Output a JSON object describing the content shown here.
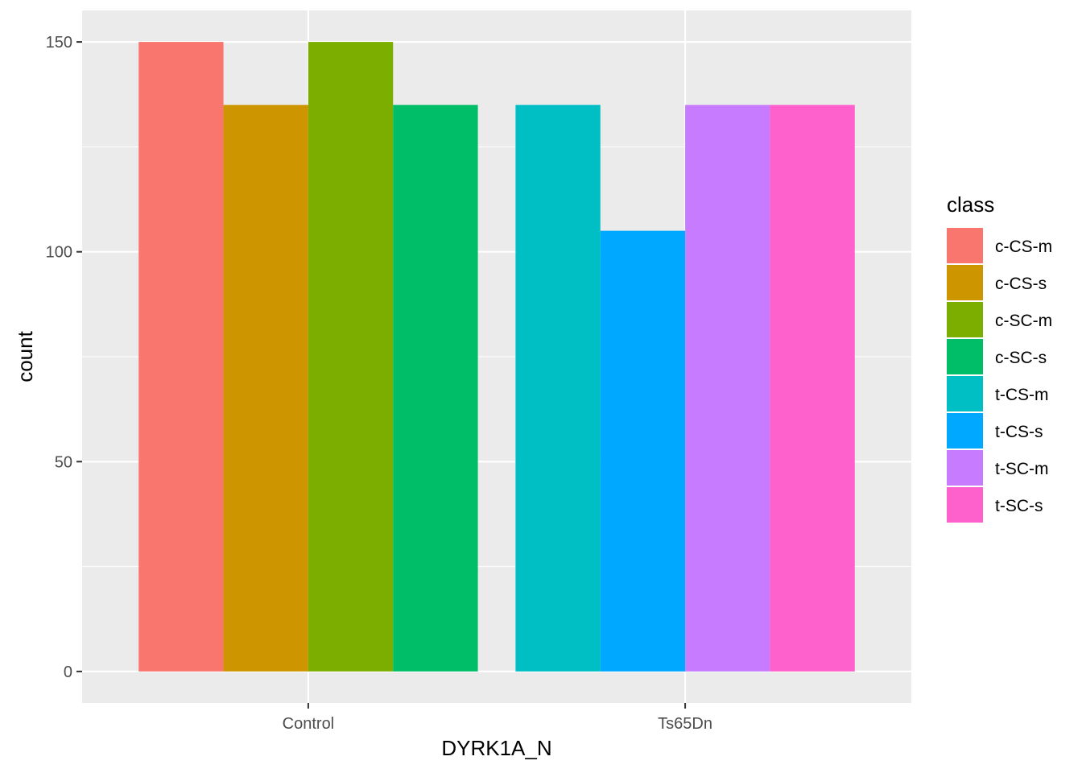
{
  "chart_data": {
    "type": "bar",
    "xlabel": "DYRK1A_N",
    "ylabel": "count",
    "categories": [
      "Control",
      "Ts65Dn"
    ],
    "ylim": [
      -7.5,
      157.5
    ],
    "y_ticks": [
      0,
      50,
      100,
      150
    ],
    "y_tick_labels": [
      "0",
      "50",
      "100",
      "150"
    ],
    "grid": true,
    "background": "#EBEBEB",
    "legend": {
      "title": "class",
      "position": "right",
      "entries": [
        "c-CS-m",
        "c-CS-s",
        "c-SC-m",
        "c-SC-s",
        "t-CS-m",
        "t-CS-s",
        "t-SC-m",
        "t-SC-s"
      ]
    },
    "series": [
      {
        "name": "c-CS-m",
        "color": "#F8766D",
        "category": "Control",
        "value": 150
      },
      {
        "name": "c-CS-s",
        "color": "#CD9600",
        "category": "Control",
        "value": 135
      },
      {
        "name": "c-SC-m",
        "color": "#7CAE00",
        "category": "Control",
        "value": 150
      },
      {
        "name": "c-SC-s",
        "color": "#00BE67",
        "category": "Control",
        "value": 135
      },
      {
        "name": "t-CS-m",
        "color": "#00BFC4",
        "category": "Ts65Dn",
        "value": 135
      },
      {
        "name": "t-CS-s",
        "color": "#00A9FF",
        "category": "Ts65Dn",
        "value": 105
      },
      {
        "name": "t-SC-m",
        "color": "#C77CFF",
        "category": "Ts65Dn",
        "value": 135
      },
      {
        "name": "t-SC-s",
        "color": "#FF61CC",
        "category": "Ts65Dn",
        "value": 135
      }
    ]
  }
}
